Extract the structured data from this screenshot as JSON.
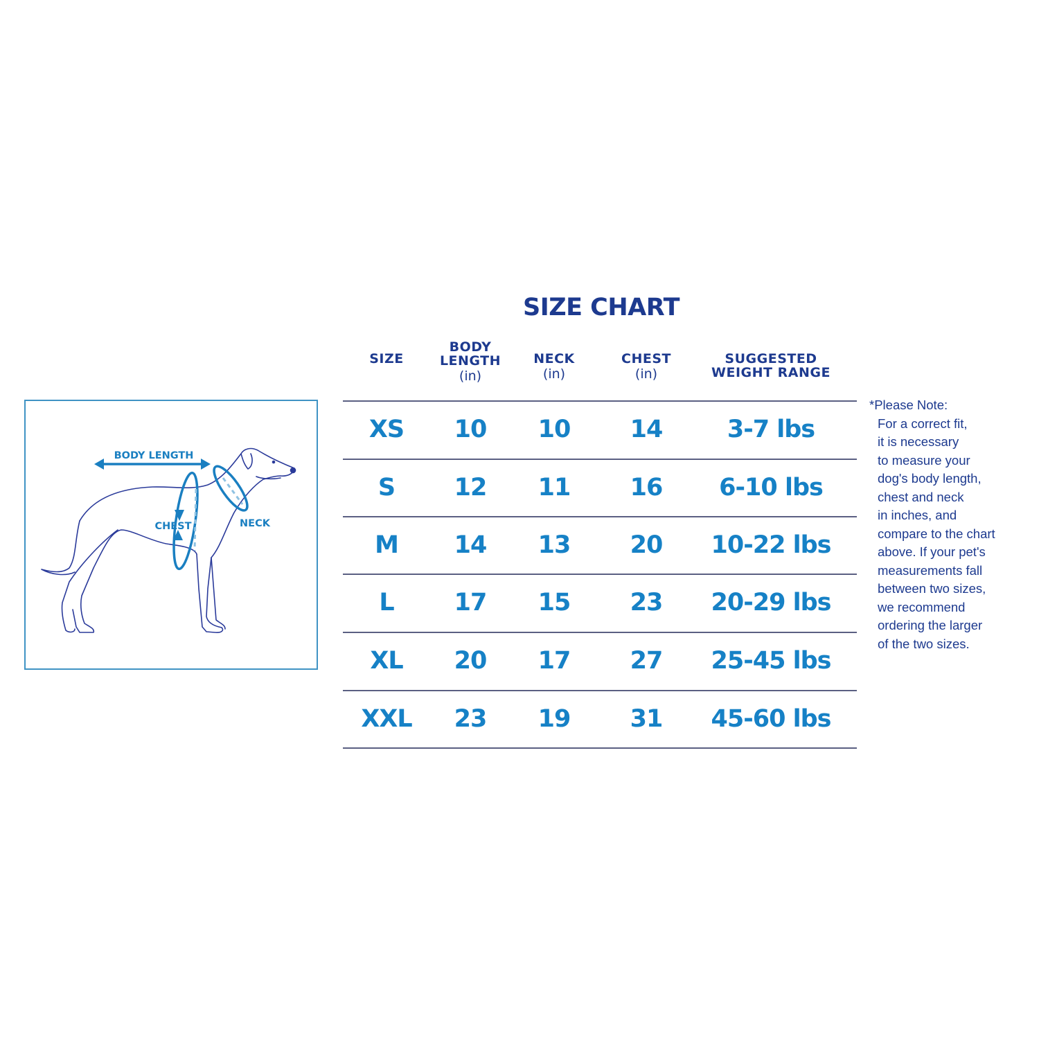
{
  "title": "SIZE CHART",
  "headers": [
    {
      "label": "SIZE",
      "unit": ""
    },
    {
      "label": "BODY LENGTH",
      "unit": "(in)"
    },
    {
      "label": "NECK",
      "unit": "(in)"
    },
    {
      "label": "CHEST",
      "unit": "(in)"
    },
    {
      "label": "SUGGESTED WEIGHT RANGE",
      "unit": ""
    }
  ],
  "rows": [
    {
      "size": "XS",
      "body_length": "10",
      "neck": "10",
      "chest": "14",
      "weight": "3-7 lbs"
    },
    {
      "size": "S",
      "body_length": "12",
      "neck": "11",
      "chest": "16",
      "weight": "6-10 lbs"
    },
    {
      "size": "M",
      "body_length": "14",
      "neck": "13",
      "chest": "20",
      "weight": "10-22 lbs"
    },
    {
      "size": "L",
      "body_length": "17",
      "neck": "15",
      "chest": "23",
      "weight": "20-29 lbs"
    },
    {
      "size": "XL",
      "body_length": "20",
      "neck": "17",
      "chest": "27",
      "weight": "25-45 lbs"
    },
    {
      "size": "XXL",
      "body_length": "23",
      "neck": "19",
      "chest": "31",
      "weight": "45-60 lbs"
    }
  ],
  "note_lines": [
    "*Please Note:",
    "For a correct fit,",
    "it is necessary",
    "to measure your",
    "dog's body length,",
    "chest and neck",
    "in inches, and",
    "compare to the chart",
    "above. If your pet's",
    "measurements fall",
    "between two sizes,",
    "we recommend",
    "ordering the larger",
    "of the two sizes."
  ],
  "diagram": {
    "body_length_label": "BODY LENGTH",
    "chest_label": "CHEST",
    "neck_label": "NECK"
  },
  "colors": {
    "title": "#1d3a8f",
    "values": "#1681c6",
    "rules": "#5a5f82",
    "diagram_border": "#3f93c4",
    "dog_outline": "#2a3a9a"
  }
}
